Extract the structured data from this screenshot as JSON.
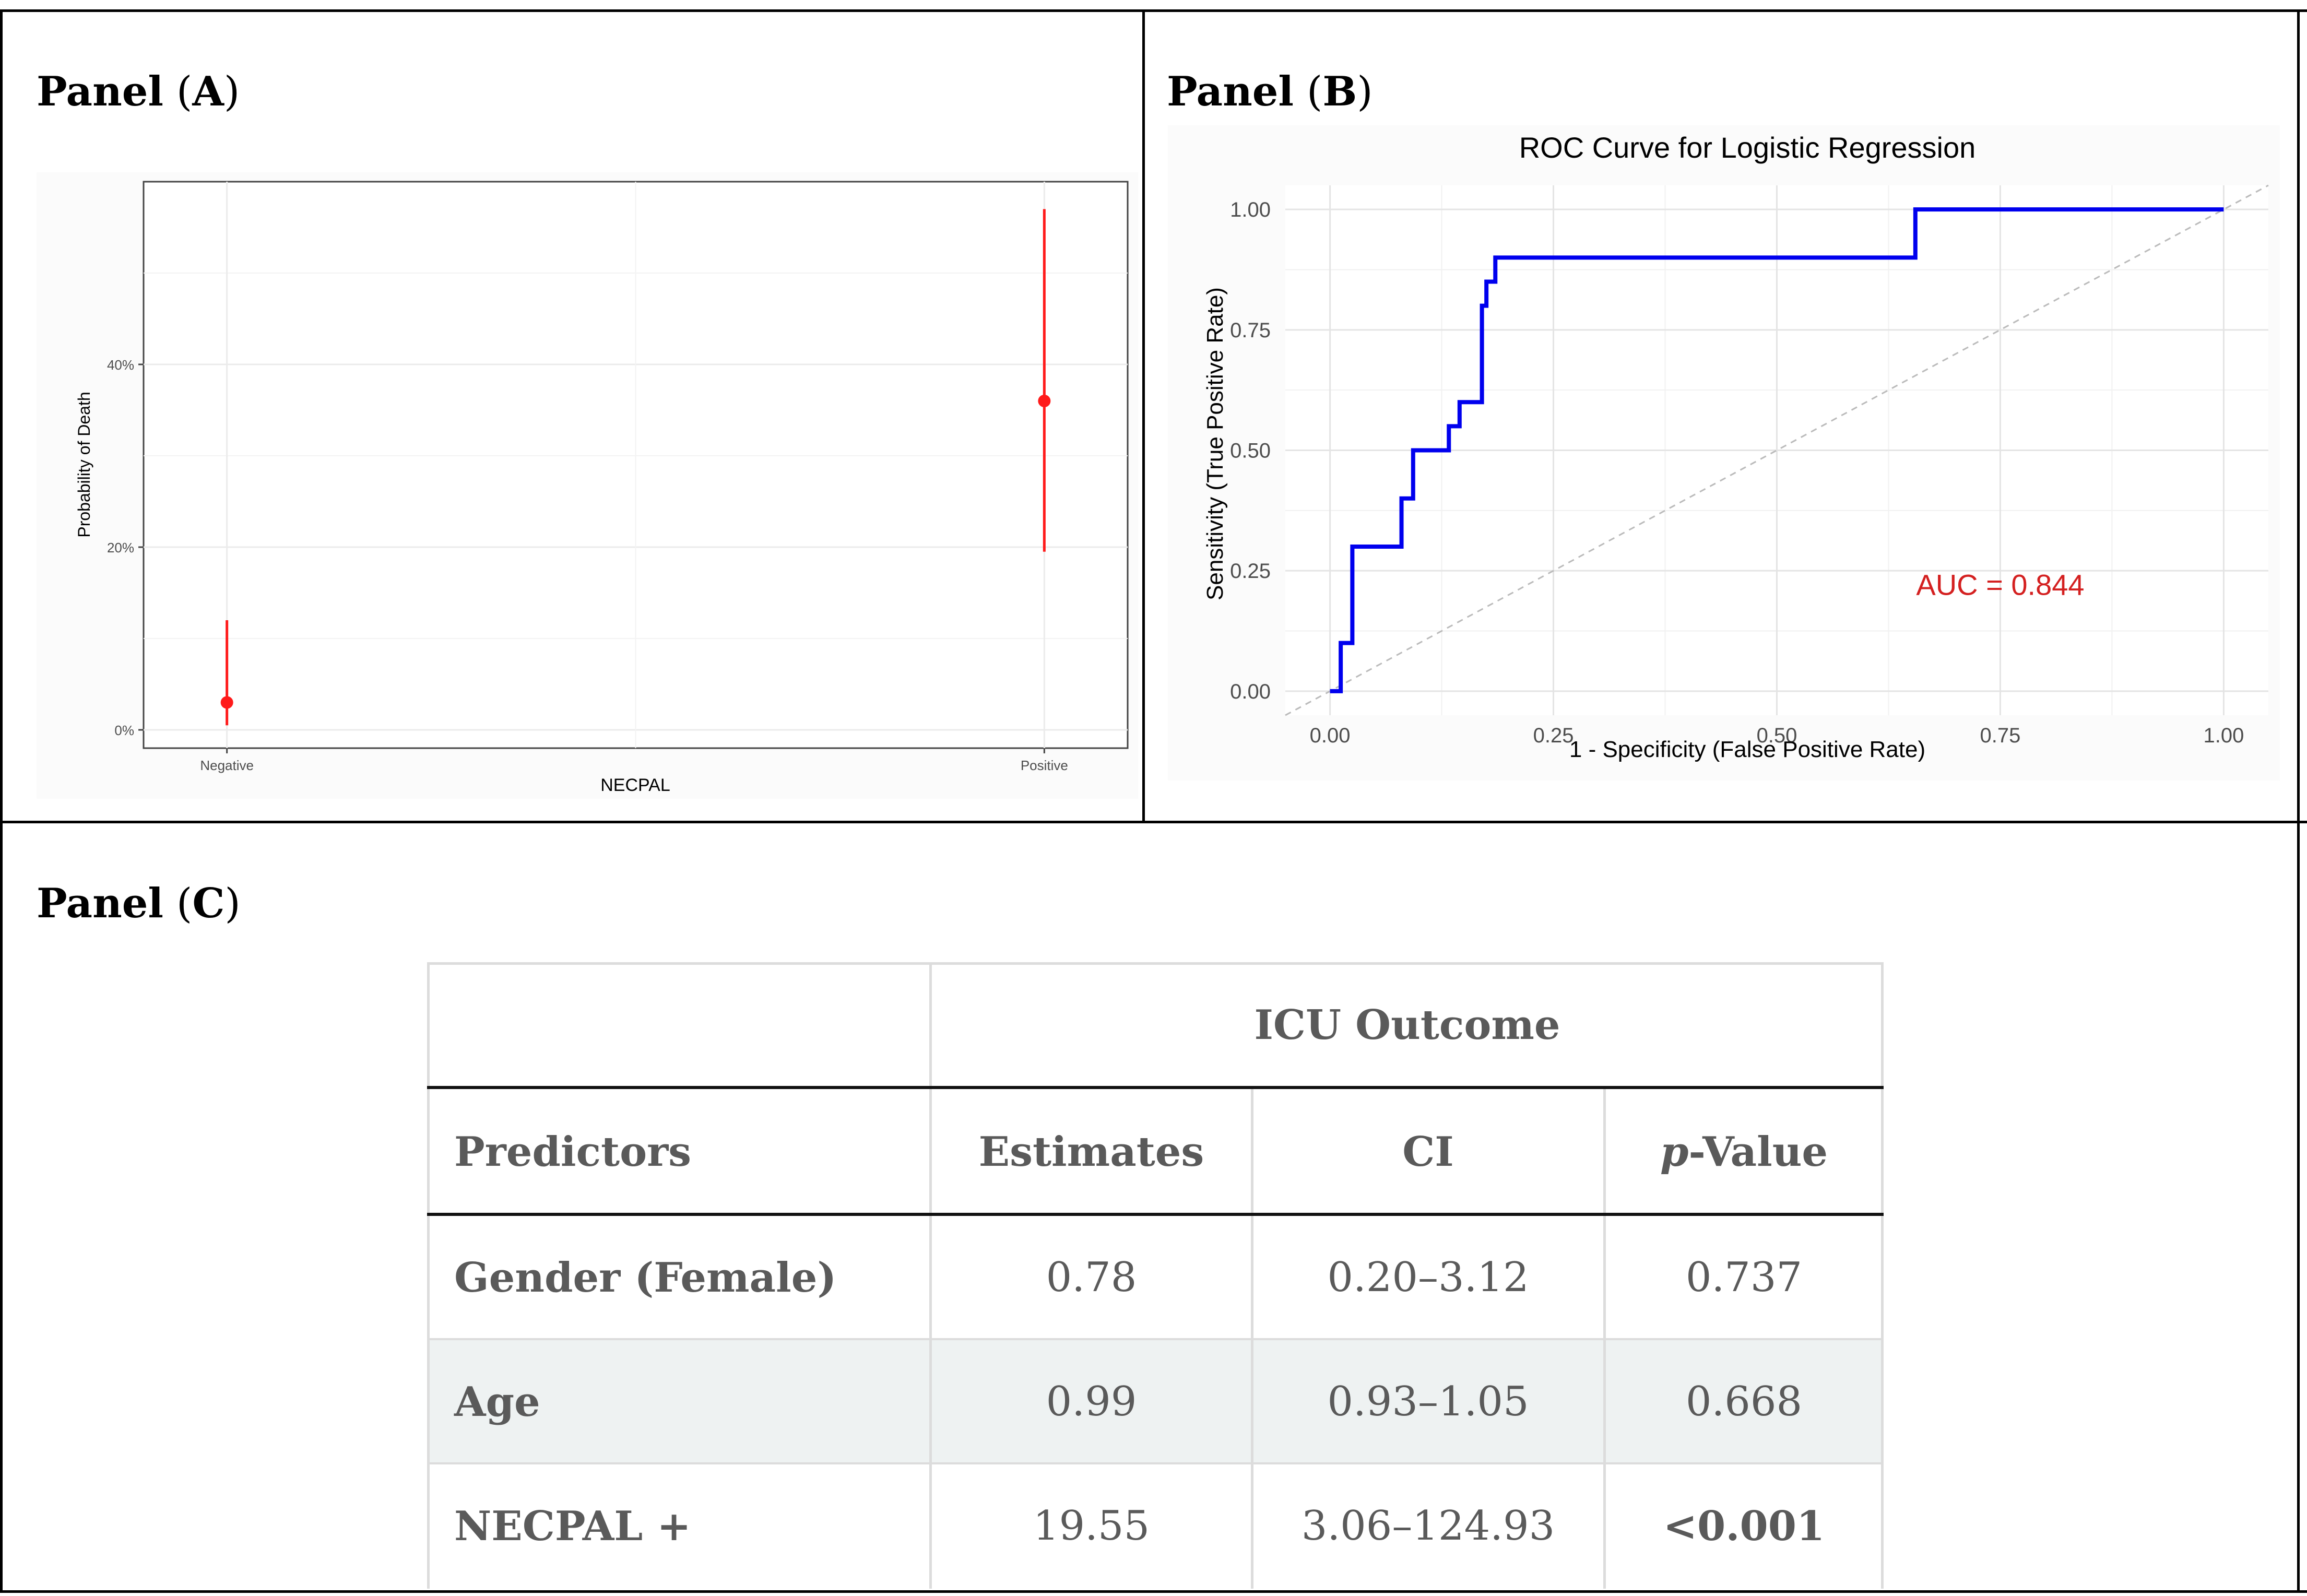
{
  "panels": {
    "a_label": "Panel",
    "a_letter": "A",
    "b_label": "Panel",
    "b_letter": "B",
    "c_label": "Panel",
    "c_letter": "C"
  },
  "chart_data": [
    {
      "type": "scatter",
      "panel": "A",
      "title": "",
      "xlabel": "NECPAL",
      "ylabel": "Probability of Death",
      "categories": [
        "Negative",
        "Positive"
      ],
      "values": [
        3,
        36
      ],
      "ci_lower": [
        0.5,
        19.5
      ],
      "ci_upper": [
        12,
        57
      ],
      "y_ticks": [
        0,
        20,
        40
      ],
      "y_tick_labels": [
        "0%",
        "20%",
        "40%"
      ],
      "ylim": [
        -2,
        60
      ],
      "grid": true,
      "point_color": "#ff1a1a"
    },
    {
      "type": "line",
      "panel": "B",
      "title": "ROC Curve for Logistic Regression",
      "xlabel": "1 - Specificity (False Positive Rate)",
      "ylabel": "Sensitivity (True Positive Rate)",
      "x_ticks": [
        0,
        0.25,
        0.5,
        0.75,
        1
      ],
      "x_tick_labels": [
        "0.00",
        "0.25",
        "0.50",
        "0.75",
        "1.00"
      ],
      "y_ticks": [
        0,
        0.25,
        0.5,
        0.75,
        1
      ],
      "y_tick_labels": [
        "0.00",
        "0.25",
        "0.50",
        "0.75",
        "1.00"
      ],
      "xlim": [
        -0.05,
        1.05
      ],
      "ylim": [
        -0.05,
        1.05
      ],
      "series": [
        {
          "name": "ROC",
          "color": "#0000ee",
          "x": [
            0.0,
            0.012,
            0.012,
            0.025,
            0.025,
            0.08,
            0.08,
            0.093,
            0.093,
            0.133,
            0.133,
            0.145,
            0.145,
            0.17,
            0.17,
            0.175,
            0.175,
            0.185,
            0.185,
            0.655,
            0.655,
            1.0
          ],
          "y": [
            0.0,
            0.0,
            0.1,
            0.1,
            0.3,
            0.3,
            0.4,
            0.4,
            0.5,
            0.5,
            0.55,
            0.55,
            0.6,
            0.6,
            0.8,
            0.8,
            0.85,
            0.85,
            0.9,
            0.9,
            1.0,
            1.0
          ]
        },
        {
          "name": "reference",
          "color": "#bbbbbb",
          "dashed": true,
          "x": [
            -0.05,
            1.05
          ],
          "y": [
            -0.05,
            1.05
          ]
        }
      ],
      "annotation": "AUC = 0.844",
      "annotation_x": 0.75,
      "annotation_y": 0.2,
      "annotation_color": "#d42020",
      "grid": true
    }
  ],
  "table": {
    "group_header": "ICU Outcome",
    "headers": {
      "predictors": "Predictors",
      "estimates": "Estimates",
      "ci": "CI",
      "p_prefix": "p",
      "p_suffix": "-Value"
    },
    "rows": [
      {
        "predictor": "Gender (Female)",
        "estimate": "0.78",
        "ci": "0.20–3.12",
        "p": "0.737"
      },
      {
        "predictor": "Age",
        "estimate": "0.99",
        "ci": "0.93–1.05",
        "p": "0.668"
      },
      {
        "predictor": "NECPAL +",
        "estimate": "19.55",
        "ci": "3.06–124.93",
        "p": "<0.001"
      }
    ],
    "row_shading": "#eef2f2"
  }
}
